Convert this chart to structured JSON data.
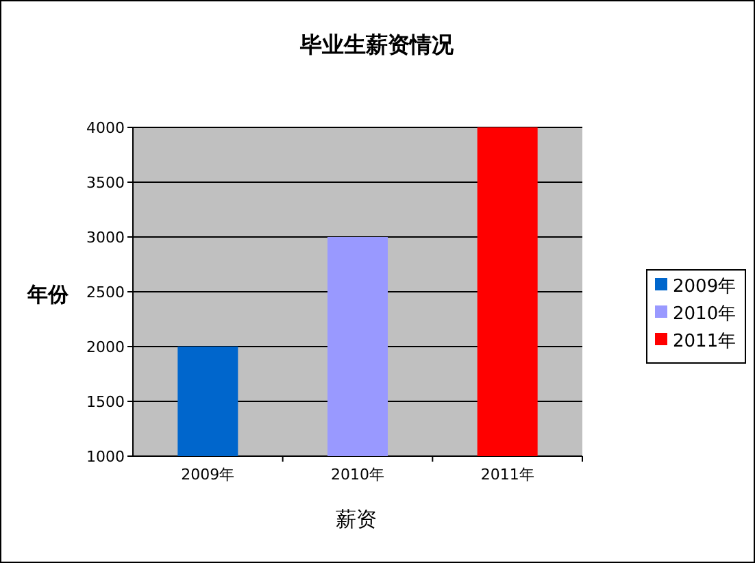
{
  "chart_data": {
    "type": "bar",
    "title": "毕业生薪资情况",
    "xlabel": "薪资",
    "ylabel": "年份",
    "categories": [
      "2009年",
      "2010年",
      "2011年"
    ],
    "series": [
      {
        "name": "2009年",
        "color": "#0066cc",
        "values": [
          2000,
          null,
          null
        ]
      },
      {
        "name": "2010年",
        "color": "#9999ff",
        "values": [
          null,
          3000,
          null
        ]
      },
      {
        "name": "2011年",
        "color": "#ff0000",
        "values": [
          null,
          null,
          4000
        ]
      }
    ],
    "ylim": [
      1000,
      4000
    ],
    "yticks": [
      1000,
      1500,
      2000,
      2500,
      3000,
      3500,
      4000
    ],
    "grid": "y",
    "legend": "right"
  }
}
